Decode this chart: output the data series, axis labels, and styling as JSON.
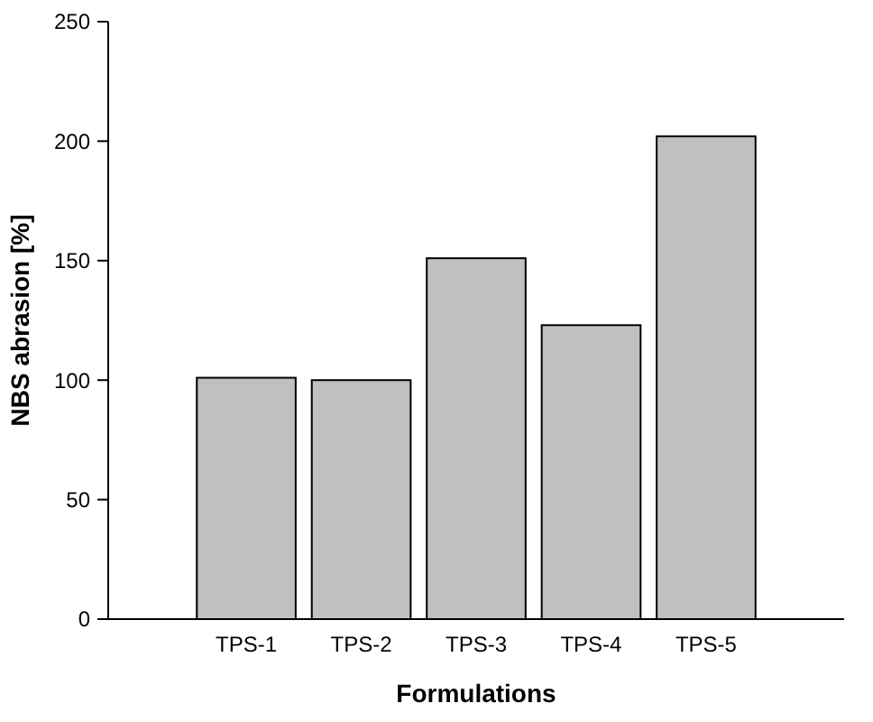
{
  "chart_data": {
    "type": "bar",
    "xlabel": "Formulations",
    "ylabel": "NBS abrasion [%]",
    "categories": [
      "TPS-1",
      "TPS-2",
      "TPS-3",
      "TPS-4",
      "TPS-5"
    ],
    "values": [
      101,
      100,
      151,
      123,
      202
    ],
    "color": "#c0c0c0",
    "ylim": [
      0,
      250
    ],
    "yticks": [
      0,
      50,
      100,
      150,
      200,
      250
    ],
    "grid": false
  }
}
